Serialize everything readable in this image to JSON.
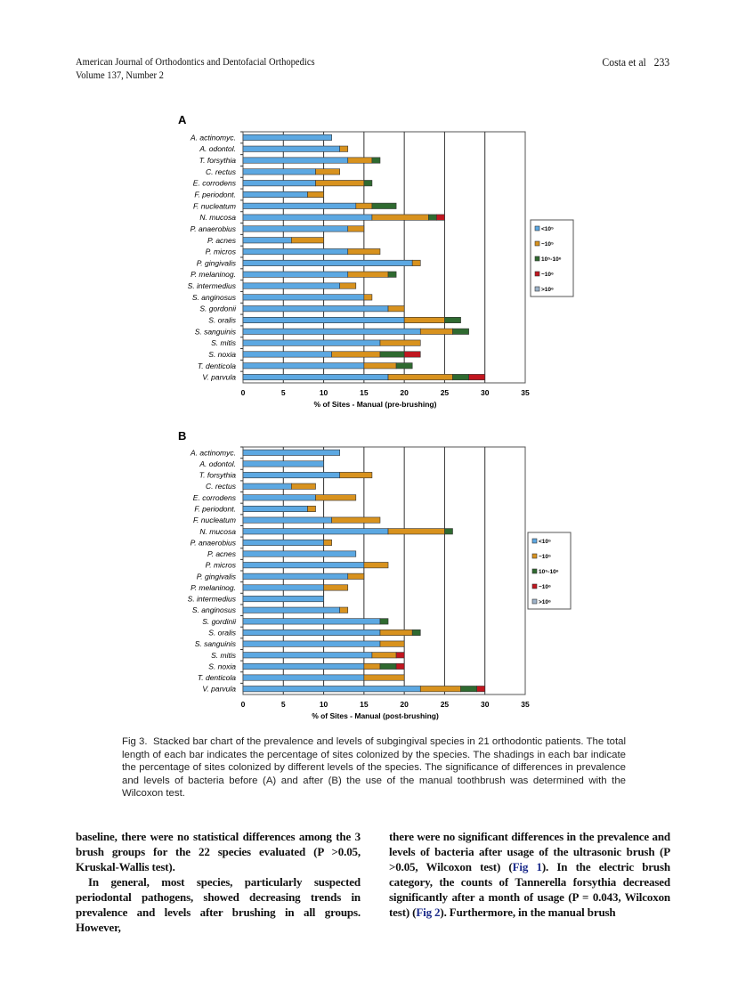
{
  "header": {
    "journal": "American Journal of Orthodontics and Dentofacial Orthopedics",
    "volume": "Volume 137, Number 2",
    "author": "Costa et al",
    "page_number": "233"
  },
  "chart_data": [
    {
      "type": "bar",
      "orientation": "horizontal",
      "stacked": true,
      "panel_label": "A",
      "xlabel": "% of Sites - Manual (pre-brushing)",
      "xlim": [
        0,
        35
      ],
      "xticks": [
        0,
        5,
        10,
        15,
        20,
        25,
        30,
        35
      ],
      "grid": "vertical",
      "legend_position": "right",
      "categories": [
        "A. actinomyc.",
        "A. odontol.",
        "T. forsythia",
        "C. rectus",
        "E. corrodens",
        "F. periodont.",
        "F. nucleatum",
        "N. mucosa",
        "P. anaerobius",
        "P. acnes",
        "P. micros",
        "P. gingivalis",
        "P. melaninog.",
        "S. intermedius",
        "S. anginosus",
        "S. gordonii",
        "S. oralis",
        "S. sanguinis",
        "S. mitis",
        "S. noxia",
        "T. denticola",
        "V. parvula"
      ],
      "series": [
        {
          "name": "<10⁵",
          "color": "#5ca8e2",
          "values": [
            11,
            12,
            13,
            9,
            9,
            8,
            14,
            16,
            13,
            6,
            13,
            21,
            13,
            12,
            15,
            18,
            20,
            22,
            17,
            11,
            15,
            18
          ]
        },
        {
          "name": "~10⁵",
          "color": "#d8921e",
          "values": [
            0,
            1,
            3,
            3,
            6,
            2,
            2,
            7,
            2,
            4,
            4,
            1,
            5,
            2,
            1,
            2,
            5,
            4,
            5,
            6,
            4,
            8
          ]
        },
        {
          "name": "10⁵-10⁶",
          "color": "#2f6a30",
          "values": [
            0,
            0,
            1,
            0,
            1,
            0,
            3,
            1,
            0,
            0,
            0,
            0,
            1,
            0,
            0,
            0,
            2,
            2,
            0,
            3,
            2,
            2
          ]
        },
        {
          "name": "~10⁶",
          "color": "#c1161f",
          "values": [
            0,
            0,
            0,
            0,
            0,
            0,
            0,
            1,
            0,
            0,
            0,
            0,
            0,
            0,
            0,
            0,
            0,
            0,
            0,
            2,
            0,
            2
          ]
        },
        {
          "name": ">10⁶",
          "color": "#9db3c9",
          "values": [
            0,
            0,
            0,
            0,
            0,
            0,
            0,
            0,
            0,
            0,
            0,
            0,
            0,
            0,
            0,
            0,
            0,
            0,
            0,
            0,
            0,
            0
          ]
        }
      ]
    },
    {
      "type": "bar",
      "orientation": "horizontal",
      "stacked": true,
      "panel_label": "B",
      "xlabel": "% of Sites - Manual (post-brushing)",
      "xlim": [
        0,
        35
      ],
      "xticks": [
        0,
        5,
        10,
        15,
        20,
        25,
        30,
        35
      ],
      "grid": "vertical",
      "legend_position": "right",
      "categories": [
        "A. actinomyc.",
        "A. odontol.",
        "T. forsythia",
        "C. rectus",
        "E. corrodens",
        "F. periodont.",
        "F. nucleatum",
        "N. mucosa",
        "P. anaerobius",
        "P. acnes",
        "P. micros",
        "P. gingivalis",
        "P. melaninog.",
        "S. intermedius",
        "S. anginosus",
        "S. gordinii",
        "S. oralis",
        "S. sanguinis",
        "S. mitis",
        "S. noxia",
        "T. denticola",
        "V. parvula"
      ],
      "series": [
        {
          "name": "<10⁵",
          "color": "#5ca8e2",
          "values": [
            12,
            10,
            12,
            6,
            9,
            8,
            11,
            18,
            10,
            14,
            15,
            13,
            10,
            10,
            12,
            17,
            17,
            17,
            16,
            15,
            15,
            22
          ]
        },
        {
          "name": "~10⁵",
          "color": "#d8921e",
          "values": [
            0,
            0,
            4,
            3,
            5,
            1,
            6,
            7,
            1,
            0,
            3,
            2,
            3,
            0,
            1,
            0,
            4,
            3,
            3,
            2,
            5,
            5
          ]
        },
        {
          "name": "10⁵-10⁶",
          "color": "#2f6a30",
          "values": [
            0,
            0,
            0,
            0,
            0,
            0,
            0,
            1,
            0,
            0,
            0,
            0,
            0,
            0,
            0,
            1,
            1,
            0,
            0,
            2,
            0,
            2
          ]
        },
        {
          "name": "~10⁶",
          "color": "#c1161f",
          "values": [
            0,
            0,
            0,
            0,
            0,
            0,
            0,
            0,
            0,
            0,
            0,
            0,
            0,
            0,
            0,
            0,
            0,
            0,
            1,
            1,
            0,
            1
          ]
        },
        {
          "name": ">10⁶",
          "color": "#9db3c9",
          "values": [
            0,
            0,
            0,
            0,
            0,
            0,
            0,
            0,
            0,
            0,
            0,
            0,
            0,
            0,
            0,
            0,
            0,
            0,
            0,
            0,
            0,
            0
          ]
        }
      ]
    }
  ],
  "caption": {
    "label": "Fig 3.",
    "text": "Stacked bar chart of the prevalence and levels of subgingival species in 21 orthodontic patients. The total length of each bar indicates the percentage of sites colonized by the species. The shadings in each bar indicate the percentage of sites colonized by different levels of the species. The significance of differences in prevalence and levels of bacteria before (A) and after (B) the use of the manual toothbrush was determined with the Wilcoxon test."
  },
  "body": {
    "left_p1": "baseline, there were no statistical differences among the 3 brush groups for the 22 species evaluated (P >0.05, Kruskal-Wallis test).",
    "left_p2": "In general, most species, particularly suspected periodontal pathogens, showed decreasing trends in prevalence and levels after brushing in all groups. However,",
    "right_a": "there were no significant differences in the prevalence and levels of bacteria after usage of the ultrasonic brush (P >0.05, Wilcoxon test) (",
    "right_ref1": "Fig 1",
    "right_b": "). In the electric brush category, the counts of Tannerella forsythia decreased significantly after a month of usage (P = 0.043, Wilcoxon test) (",
    "right_ref2": "Fig 2",
    "right_c": "). Furthermore, in the manual brush"
  }
}
